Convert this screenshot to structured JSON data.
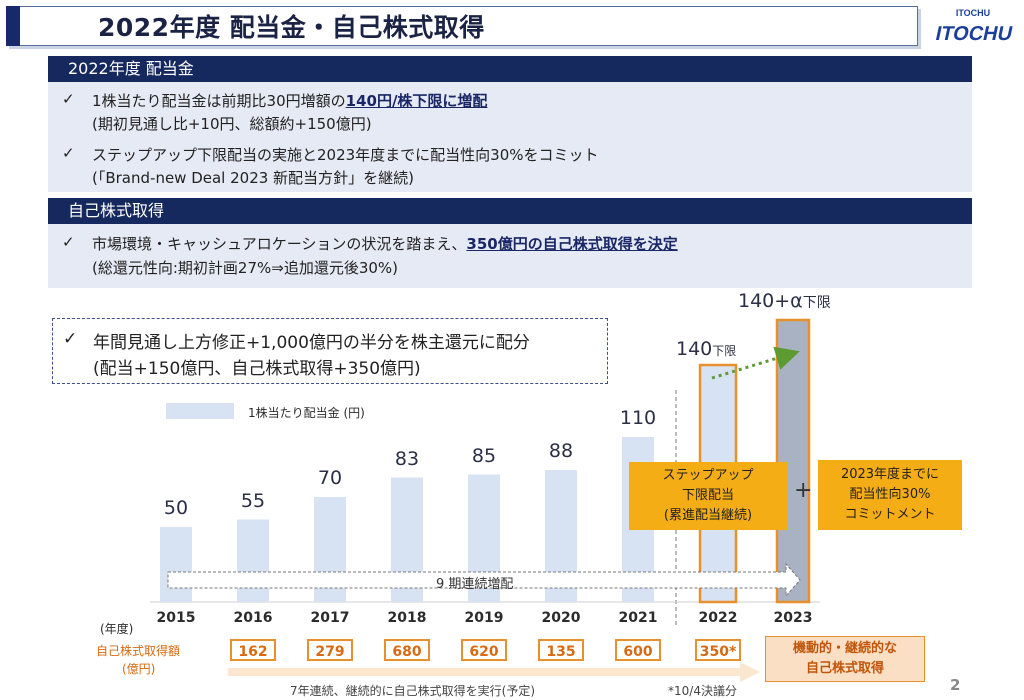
{
  "title": "2022年度 配当金・自己株式取得",
  "logo": {
    "text_top": "ITOCHU",
    "text_main": "ITOCHU"
  },
  "section1": {
    "header": "2022年度 配当金",
    "items": [
      {
        "pre": "1株当たり配当金は前期比30円増額の",
        "em": "140円/株下限に増配",
        "post": "",
        "sub": "(期初見通し比+10円、総額約+150億円)"
      },
      {
        "pre": "ステップアップ下限配当の実施と2023年度までに配当性向30%をコミット",
        "em": "",
        "post": "",
        "sub": "(「Brand-new Deal 2023 新配当方針」を継続)"
      }
    ]
  },
  "section2": {
    "header": "自己株式取得",
    "items": [
      {
        "pre": "市場環境・キャッシュアロケーションの状況を踏まえ、",
        "em": "350億円の自己株式取得を決定",
        "post": "",
        "sub": "(総還元性向:期初計画27%⇒追加還元後30%)"
      }
    ]
  },
  "callout": {
    "line1": "年間見通し上方修正+1,000億円の半分を株主還元に配分",
    "line2": "(配当+150億円、自己株式取得+350億円)"
  },
  "chart_data": {
    "type": "bar",
    "legend": "1株当たり配当金 (円)",
    "categories": [
      "2015",
      "2016",
      "2017",
      "2018",
      "2019",
      "2020",
      "2021",
      "2022",
      "2023"
    ],
    "values": [
      50,
      55,
      70,
      83,
      85,
      88,
      110,
      140,
      null
    ],
    "labels": [
      "50",
      "55",
      "70",
      "83",
      "85",
      "88",
      "110",
      "140",
      "140+α"
    ],
    "label_suffix_2022": "下限",
    "label_suffix_2023": "下限",
    "year_unit": "(年度)",
    "streak_label": "9 期連続増配",
    "step_up_note": "ステップアップ\n下限配当\n(累進配当継続)",
    "plus_sign": "+",
    "commit_note": "2023年度までに\n配当性向30%\nコミットメント"
  },
  "buyback": {
    "label_line1": "自己株式取得額",
    "label_line2": "(億円)",
    "values": [
      "162",
      "279",
      "680",
      "620",
      "135",
      "600",
      "350*"
    ],
    "future_line1": "機動的・継続的な",
    "future_line2": "自己株式取得",
    "arrow_text": "7年連続、継続的に自己株式取得を実行(予定)",
    "footnote": "*10/4決議分"
  },
  "page_number": "2",
  "colors": {
    "navy": "#16295f",
    "bar": "#d7e2f3",
    "orange": "#f5ad15",
    "orange_line": "#e8902d"
  }
}
